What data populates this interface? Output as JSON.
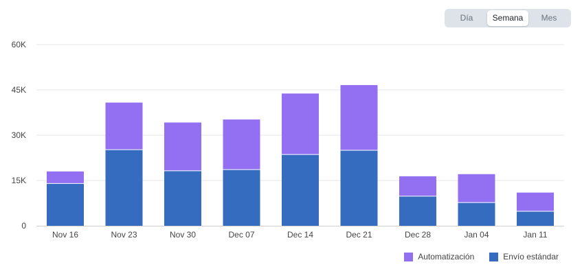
{
  "controls": {
    "period_options": [
      "Día",
      "Semana",
      "Mes"
    ],
    "selected": "Semana"
  },
  "colors": {
    "automatizacion": "#9370f2",
    "envio_estandar": "#356cc0",
    "grid": "#e6e6e6",
    "axis": "#cfcfcf"
  },
  "chart_data": {
    "type": "bar",
    "stacked": true,
    "categories": [
      "Nov 16",
      "Nov 23",
      "Nov 30",
      "Dec 07",
      "Dec 14",
      "Dec 21",
      "Dec 28",
      "Jan 04",
      "Jan 11"
    ],
    "series": [
      {
        "name": "Envío estándar",
        "values": [
          14000,
          25200,
          18200,
          18600,
          23600,
          25000,
          9800,
          7700,
          4800
        ]
      },
      {
        "name": "Automatización",
        "values": [
          4000,
          15600,
          16000,
          16600,
          20200,
          21600,
          6600,
          9400,
          6200
        ]
      }
    ],
    "ylim": [
      0,
      60000
    ],
    "yticks": [
      0,
      15000,
      30000,
      45000,
      60000
    ],
    "ytick_labels": [
      "0",
      "15K",
      "30K",
      "45K",
      "60K"
    ],
    "legend_order": [
      "Automatización",
      "Envío estándar"
    ],
    "legend_position": "bottom-right",
    "grid": true
  }
}
